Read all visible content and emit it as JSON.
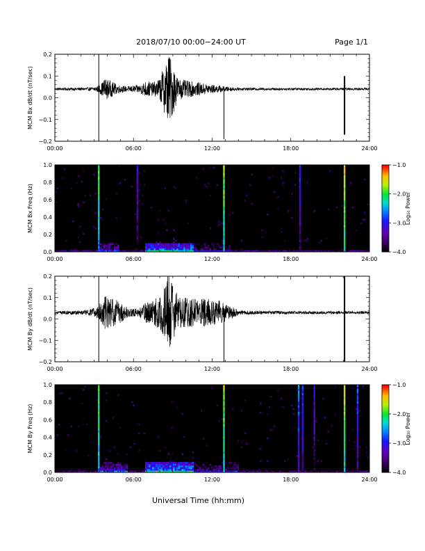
{
  "header": {
    "title": "2018/07/10  00:00−24:00 UT",
    "page_label": "Page 1/1"
  },
  "colors": {
    "trace": "#000000",
    "spectrogram_background": "#000000"
  },
  "chart_data": [
    {
      "type": "line",
      "title": "",
      "ylabel": "MCM Bx dB/dt (nT/sec)",
      "xlabel": "",
      "xlim": [
        0,
        24
      ],
      "ylim": [
        -0.2,
        0.2
      ],
      "x_ticks": [
        "00:00",
        "06:00",
        "12:00",
        "18:00",
        "24:00"
      ],
      "y_ticks": [
        "−0.2",
        "−0.1",
        "0.0",
        "0.1",
        "0.2"
      ],
      "baseline": 0.04,
      "noise": [
        [
          0,
          0.006
        ],
        [
          2.5,
          0.007
        ],
        [
          3.2,
          0.012
        ],
        [
          3.6,
          0.03
        ],
        [
          3.8,
          0.05
        ],
        [
          4.2,
          0.04
        ],
        [
          4.8,
          0.02
        ],
        [
          5.5,
          0.012
        ],
        [
          6.5,
          0.02
        ],
        [
          7.0,
          0.04
        ],
        [
          7.5,
          0.03
        ],
        [
          8.0,
          0.05
        ],
        [
          8.4,
          0.12
        ],
        [
          8.7,
          0.17
        ],
        [
          9.0,
          0.12
        ],
        [
          9.4,
          0.05
        ],
        [
          10.0,
          0.04
        ],
        [
          11.0,
          0.03
        ],
        [
          12.0,
          0.02
        ],
        [
          13.0,
          0.012
        ],
        [
          14.0,
          0.006
        ],
        [
          24,
          0.005
        ]
      ],
      "spikes": [
        [
          3.35,
          -0.215,
          0.2
        ],
        [
          12.9,
          -0.19,
          0.035
        ],
        [
          22.1,
          -0.17,
          0.1
        ]
      ]
    },
    {
      "type": "heatmap",
      "title": "",
      "ylabel": "MCM Bx Freq (Hz)",
      "xlabel": "",
      "xlim": [
        0,
        24
      ],
      "ylim": [
        0.0,
        1.0
      ],
      "x_ticks": [
        "00:00",
        "06:00",
        "12:00",
        "18:00",
        "24:00"
      ],
      "y_ticks": [
        "0.0",
        "0.2",
        "0.4",
        "0.6",
        "0.8",
        "1.0"
      ],
      "colorbar": {
        "label": "Log₁₀ Power",
        "range": [
          -4.0,
          -1.0
        ],
        "ticks": [
          "−1.0",
          "−2.0",
          "−3.0",
          "−4.0"
        ]
      },
      "vertical_bands": [
        [
          3.35,
          -1.6
        ],
        [
          6.3,
          -2.8
        ],
        [
          12.9,
          -1.4
        ],
        [
          18.7,
          -2.6
        ],
        [
          22.1,
          -1.2
        ]
      ],
      "activity": [
        [
          3.2,
          4.8,
          -2.6
        ],
        [
          6.8,
          10.5,
          -2.0
        ],
        [
          10.5,
          13.5,
          -2.9
        ]
      ]
    },
    {
      "type": "line",
      "title": "",
      "ylabel": "MCM By dB/dt (nT/sec)",
      "xlabel": "",
      "xlim": [
        0,
        24
      ],
      "ylim": [
        -0.2,
        0.2
      ],
      "x_ticks": [
        "00:00",
        "06:00",
        "12:00",
        "18:00",
        "24:00"
      ],
      "y_ticks": [
        "−0.2",
        "−0.1",
        "0.0",
        "0.1",
        "0.2"
      ],
      "baseline": 0.03,
      "noise": [
        [
          0,
          0.006
        ],
        [
          2.5,
          0.012
        ],
        [
          3.3,
          0.03
        ],
        [
          3.8,
          0.08
        ],
        [
          4.3,
          0.07
        ],
        [
          5.0,
          0.05
        ],
        [
          5.6,
          0.02
        ],
        [
          6.4,
          0.02
        ],
        [
          7.0,
          0.05
        ],
        [
          7.6,
          0.06
        ],
        [
          8.2,
          0.1
        ],
        [
          8.7,
          0.2
        ],
        [
          9.0,
          0.15
        ],
        [
          9.4,
          0.07
        ],
        [
          10.5,
          0.07
        ],
        [
          12.5,
          0.06
        ],
        [
          13.5,
          0.03
        ],
        [
          14.0,
          0.01
        ],
        [
          16.0,
          0.008
        ],
        [
          24,
          0.006
        ]
      ],
      "spikes": [
        [
          3.35,
          -0.215,
          0.2
        ],
        [
          12.9,
          -0.215,
          0.05
        ],
        [
          22.1,
          -0.215,
          0.2
        ]
      ]
    },
    {
      "type": "heatmap",
      "title": "",
      "ylabel": "MCM By Freq (Hz)",
      "xlabel": "Universal Time (hh:mm)",
      "xlim": [
        0,
        24
      ],
      "ylim": [
        0.0,
        1.0
      ],
      "x_ticks": [
        "00:00",
        "06:00",
        "12:00",
        "18:00",
        "24:00"
      ],
      "y_ticks": [
        "0.0",
        "0.2",
        "0.4",
        "0.6",
        "0.8",
        "1.0"
      ],
      "colorbar": {
        "label": "Log₁₀ Power",
        "range": [
          -4.0,
          -1.0
        ],
        "ticks": [
          "−1.0",
          "−2.0",
          "−3.0",
          "−4.0"
        ]
      },
      "vertical_bands": [
        [
          3.35,
          -1.6
        ],
        [
          12.9,
          -1.4
        ],
        [
          18.6,
          -2.3
        ],
        [
          18.9,
          -2.5
        ],
        [
          19.8,
          -2.8
        ],
        [
          22.1,
          -1.3
        ],
        [
          23.1,
          -2.5
        ]
      ],
      "activity": [
        [
          3.2,
          5.5,
          -2.5
        ],
        [
          6.8,
          10.5,
          -1.9
        ],
        [
          10.5,
          14.0,
          -2.8
        ]
      ]
    }
  ]
}
